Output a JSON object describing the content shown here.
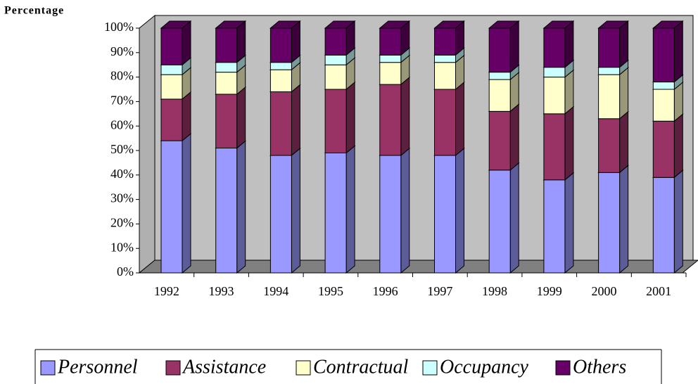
{
  "chart_data": {
    "type": "bar",
    "stacked": true,
    "title": "Percentage",
    "categories": [
      "1992",
      "1993",
      "1994",
      "1995",
      "1996",
      "1997",
      "1998",
      "1999",
      "2000",
      "2001"
    ],
    "series": [
      {
        "name": "Personnel",
        "color": "#9999ff",
        "values": [
          54,
          51,
          48,
          49,
          48,
          48,
          42,
          38,
          41,
          39
        ]
      },
      {
        "name": "Assistance",
        "color": "#993366",
        "values": [
          17,
          22,
          26,
          26,
          29,
          27,
          24,
          27,
          22,
          23
        ]
      },
      {
        "name": "Contractual",
        "color": "#ffffcc",
        "values": [
          10,
          9,
          9,
          10,
          9,
          11,
          13,
          15,
          18,
          13
        ]
      },
      {
        "name": "Occupancy",
        "color": "#ccffff",
        "values": [
          4,
          4,
          3,
          4,
          3,
          3,
          3,
          4,
          3,
          3
        ]
      },
      {
        "name": "Others",
        "color": "#660066",
        "values": [
          15,
          14,
          14,
          11,
          11,
          11,
          18,
          16,
          16,
          22
        ]
      }
    ],
    "ylim": [
      0,
      100
    ],
    "yticks": [
      {
        "value": 0,
        "label": "0%"
      },
      {
        "value": 10,
        "label": "10%"
      },
      {
        "value": 20,
        "label": "20%"
      },
      {
        "value": 30,
        "label": "30%"
      },
      {
        "value": 40,
        "label": "40%"
      },
      {
        "value": 50,
        "label": "50%"
      },
      {
        "value": 60,
        "label": "60%"
      },
      {
        "value": 70,
        "label": "70%"
      },
      {
        "value": 80,
        "label": "80%"
      },
      {
        "value": 90,
        "label": "90%"
      },
      {
        "value": 100,
        "label": "100%"
      }
    ]
  }
}
